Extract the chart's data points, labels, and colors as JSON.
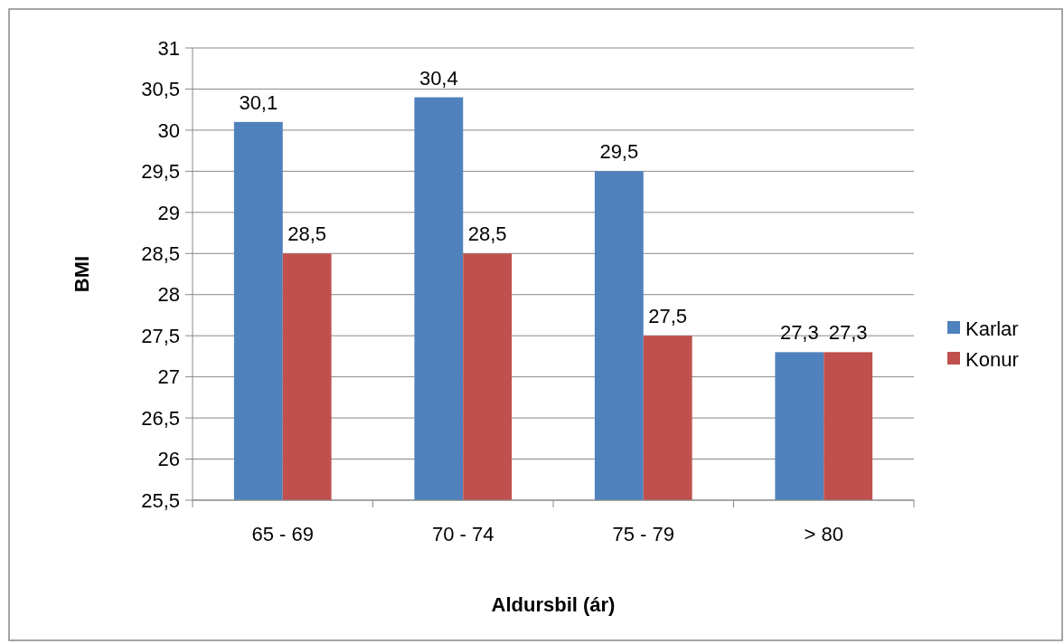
{
  "chart_data": {
    "type": "bar",
    "xlabel": "Aldursbil (ár)",
    "ylabel": "BMI",
    "categories": [
      "65 - 69",
      "70 - 74",
      "75 - 79",
      "> 80"
    ],
    "series": [
      {
        "name": "Karlar",
        "color": "#4f81bd",
        "values": [
          30.1,
          30.4,
          29.5,
          27.3
        ],
        "value_labels": [
          "30,1",
          "30,4",
          "29,5",
          "27,3"
        ]
      },
      {
        "name": "Konur",
        "color": "#c0504d",
        "values": [
          28.5,
          28.5,
          27.5,
          27.3
        ],
        "value_labels": [
          "28,5",
          "28,5",
          "27,5",
          "27,3"
        ]
      }
    ],
    "ylim": [
      25.5,
      31
    ],
    "yticks": [
      {
        "value": 25.5,
        "label": "25,5"
      },
      26,
      {
        "value": 26.5,
        "label": "26,5"
      },
      27,
      {
        "value": 27.5,
        "label": "27,5"
      },
      28,
      {
        "value": 28.5,
        "label": "28,5"
      },
      29,
      {
        "value": 29.5,
        "label": "29,5"
      },
      30,
      {
        "value": 30.5,
        "label": "30,5"
      },
      31
    ],
    "grid": "y",
    "legend": "right"
  }
}
